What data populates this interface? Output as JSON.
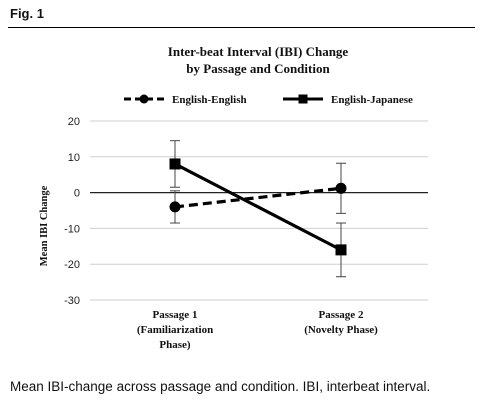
{
  "figure": {
    "label": "Fig. 1",
    "caption": "Mean IBI-change across passage and condition. IBI, interbeat interval."
  },
  "chart_data": {
    "type": "line",
    "title_lines": [
      "Inter-beat Interval (IBI) Change",
      "by Passage and Condition"
    ],
    "ylabel": "Mean IBI Change",
    "xlabel": "",
    "categories": [
      [
        "Passage 1",
        "(Familiarization",
        "Phase)"
      ],
      [
        "Passage 2",
        "(Novelty Phase)"
      ]
    ],
    "ylim": [
      -30,
      20
    ],
    "yticks": [
      20,
      10,
      0,
      -10,
      -20,
      -30
    ],
    "grid": true,
    "legend_position": "top",
    "series": [
      {
        "name": "English-English",
        "values": [
          -4,
          1.2
        ],
        "error": [
          4.5,
          7
        ],
        "marker": "circle",
        "line_style": "dashed",
        "color": "#000000"
      },
      {
        "name": "English-Japanese",
        "values": [
          8,
          -16
        ],
        "error": [
          6.5,
          7.5
        ],
        "marker": "square",
        "line_style": "solid",
        "color": "#000000"
      }
    ]
  }
}
